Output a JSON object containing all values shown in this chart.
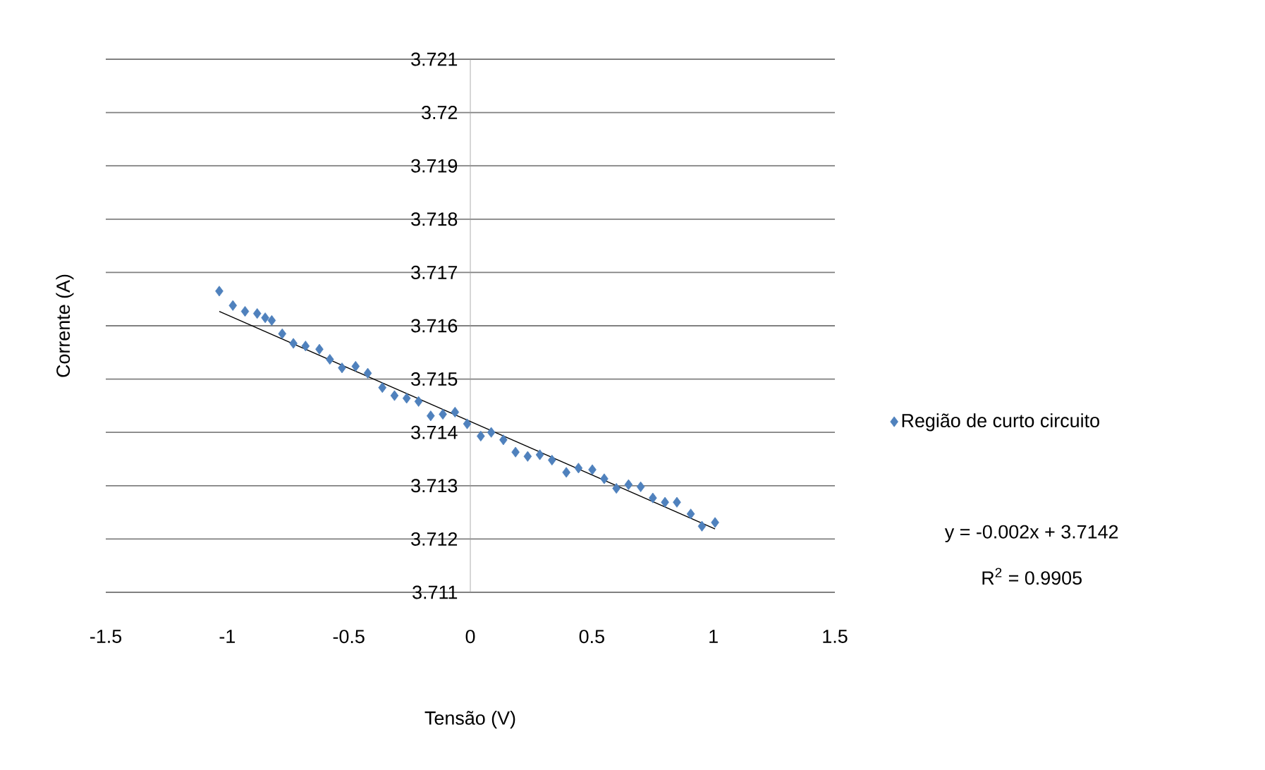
{
  "chart_data": {
    "type": "scatter",
    "xlabel": "Tensão (V)",
    "ylabel": "Corrente (A)",
    "xlim": [
      -1.5,
      1.5
    ],
    "xticks": [
      -1.5,
      -1,
      -0.5,
      0,
      0.5,
      1,
      1.5
    ],
    "ylim": [
      3.711,
      3.721
    ],
    "yticks": [
      3.711,
      3.712,
      3.713,
      3.714,
      3.715,
      3.716,
      3.717,
      3.718,
      3.719,
      3.72,
      3.721
    ],
    "grid": "y",
    "legend": "right",
    "marker": "diamond",
    "annotations": [
      "y = -0.002x + 3.7142",
      "R$^{2}$ = 0.9905"
    ],
    "series": [
      {
        "name": "Região de curto circuito",
        "type": "scatter",
        "color": "#4f81bd",
        "x": [
          -1.033,
          -0.977,
          -0.927,
          -0.877,
          -0.844,
          -0.817,
          -0.774,
          -0.728,
          -0.678,
          -0.621,
          -0.578,
          -0.528,
          -0.472,
          -0.422,
          -0.362,
          -0.312,
          -0.262,
          -0.213,
          -0.163,
          -0.113,
          -0.063,
          -0.013,
          0.043,
          0.086,
          0.136,
          0.186,
          0.236,
          0.286,
          0.336,
          0.395,
          0.445,
          0.502,
          0.551,
          0.601,
          0.651,
          0.701,
          0.751,
          0.801,
          0.85,
          0.907,
          0.953,
          1.007
        ],
        "values": [
          3.71665,
          3.71638,
          3.71627,
          3.71623,
          3.71615,
          3.7161,
          3.71585,
          3.71567,
          3.71562,
          3.71556,
          3.71537,
          3.71521,
          3.71524,
          3.71511,
          3.71484,
          3.71469,
          3.71464,
          3.71458,
          3.71431,
          3.71434,
          3.71438,
          3.71416,
          3.71393,
          3.714,
          3.71386,
          3.71363,
          3.71355,
          3.71358,
          3.71348,
          3.71325,
          3.71333,
          3.7133,
          3.71313,
          3.71295,
          3.71302,
          3.71298,
          3.71277,
          3.71269,
          3.71269,
          3.71247,
          3.71224,
          3.71231
        ]
      },
      {
        "type": "line",
        "color": "#000000",
        "line_style": "solid",
        "marker": "none",
        "x": [
          -1.033,
          1.007
        ],
        "values": [
          3.71627,
          3.71219
        ]
      }
    ]
  }
}
